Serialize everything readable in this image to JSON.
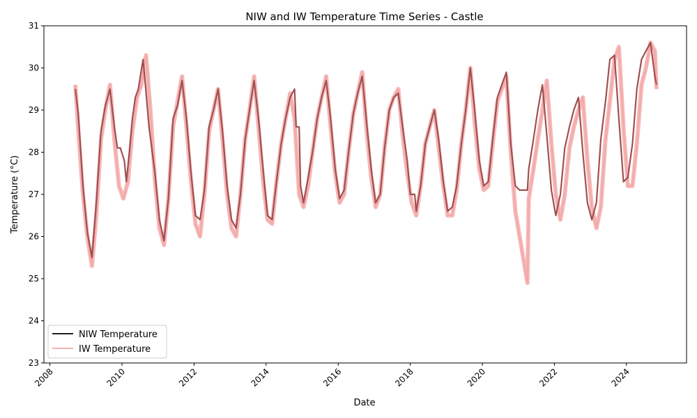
{
  "chart_data": {
    "type": "line",
    "title": "NIW and IW Temperature Time Series - Castle",
    "xlabel": "Date",
    "ylabel": "Temperature (°C)",
    "xlim": [
      "2007-11-01",
      "2025-09-01"
    ],
    "ylim": [
      23,
      31
    ],
    "x_ticks": [
      "2008",
      "2010",
      "2012",
      "2014",
      "2016",
      "2018",
      "2020",
      "2022",
      "2024"
    ],
    "y_ticks": [
      23,
      24,
      25,
      26,
      27,
      28,
      29,
      30,
      31
    ],
    "grid": false,
    "legend_position": "lower-left",
    "series": [
      {
        "name": "NIW Temperature",
        "color": "#000000",
        "x": [
          "2008-09-15",
          "2008-10-15",
          "2008-12-01",
          "2009-01-15",
          "2009-03-01",
          "2009-04-15",
          "2009-06-01",
          "2009-07-15",
          "2009-09-01",
          "2009-10-15",
          "2009-11-15",
          "2009-12-15",
          "2010-01-25",
          "2010-02-15",
          "2010-03-15",
          "2010-04-15",
          "2010-05-15",
          "2010-06-15",
          "2010-08-01",
          "2010-08-25",
          "2010-10-01",
          "2010-12-01",
          "2011-01-15",
          "2011-03-01",
          "2011-04-15",
          "2011-06-01",
          "2011-07-15",
          "2011-09-01",
          "2011-10-15",
          "2011-12-01",
          "2012-01-15",
          "2012-03-01",
          "2012-04-15",
          "2012-06-01",
          "2012-07-15",
          "2012-09-01",
          "2012-10-15",
          "2012-12-01",
          "2013-01-15",
          "2013-03-01",
          "2013-04-15",
          "2013-06-01",
          "2013-07-15",
          "2013-09-01",
          "2013-10-15",
          "2013-12-01",
          "2014-01-15",
          "2014-03-01",
          "2014-04-15",
          "2014-06-01",
          "2014-07-15",
          "2014-09-01",
          "2014-10-15",
          "2014-11-01",
          "2014-12-01",
          "2014-12-15",
          "2015-01-15",
          "2015-03-01",
          "2015-04-15",
          "2015-06-01",
          "2015-07-15",
          "2015-09-01",
          "2015-10-15",
          "2015-12-01",
          "2016-01-15",
          "2016-03-01",
          "2016-04-15",
          "2016-06-01",
          "2016-07-15",
          "2016-09-01",
          "2016-10-15",
          "2016-12-01",
          "2017-01-15",
          "2017-03-01",
          "2017-04-15",
          "2017-06-01",
          "2017-07-15",
          "2017-09-01",
          "2017-10-15",
          "2017-12-01",
          "2018-01-01",
          "2018-02-15",
          "2018-03-01",
          "2018-04-15",
          "2018-06-01",
          "2018-07-15",
          "2018-09-01",
          "2018-10-15",
          "2018-12-01",
          "2019-01-15",
          "2019-03-01",
          "2019-04-15",
          "2019-06-01",
          "2019-07-15",
          "2019-09-01",
          "2019-10-15",
          "2019-12-01",
          "2020-01-15",
          "2020-03-01",
          "2020-04-15",
          "2020-06-01",
          "2020-07-15",
          "2020-09-01",
          "2020-10-15",
          "2020-12-01",
          "2021-01-15",
          "2021-02-01",
          "2021-04-01",
          "2021-04-15",
          "2021-06-01",
          "2021-07-15",
          "2021-09-01",
          "2021-10-15",
          "2021-12-01",
          "2022-01-15",
          "2022-03-01",
          "2022-04-15",
          "2022-06-01",
          "2022-07-15",
          "2022-09-01",
          "2022-10-15",
          "2022-12-01",
          "2023-01-15",
          "2023-03-01",
          "2023-04-15",
          "2023-06-01",
          "2023-07-15",
          "2023-09-01",
          "2023-10-15",
          "2023-12-01",
          "2024-01-15",
          "2024-03-01",
          "2024-04-15",
          "2024-06-01",
          "2024-07-15",
          "2024-09-01",
          "2024-10-15",
          "2024-11-01"
        ],
        "y": [
          29.5,
          28.9,
          27.2,
          26.1,
          25.5,
          26.8,
          28.5,
          29.1,
          29.5,
          28.6,
          28.1,
          28.1,
          27.8,
          27.3,
          28.0,
          28.8,
          29.3,
          29.5,
          30.2,
          29.6,
          28.6,
          27.5,
          26.4,
          25.9,
          26.9,
          28.8,
          29.1,
          29.7,
          28.8,
          27.5,
          26.5,
          26.4,
          27.1,
          28.6,
          29.0,
          29.5,
          28.5,
          27.2,
          26.4,
          26.2,
          27.0,
          28.3,
          29.0,
          29.7,
          28.8,
          27.6,
          26.5,
          26.4,
          27.3,
          28.2,
          28.8,
          29.3,
          29.5,
          28.6,
          28.6,
          27.2,
          26.8,
          27.4,
          28.0,
          28.8,
          29.3,
          29.7,
          28.8,
          27.6,
          26.9,
          27.1,
          28.0,
          28.9,
          29.4,
          29.8,
          28.7,
          27.6,
          26.8,
          27.0,
          28.1,
          29.0,
          29.3,
          29.4,
          28.6,
          27.8,
          27.0,
          27.0,
          26.6,
          27.2,
          28.2,
          28.6,
          29.0,
          28.3,
          27.3,
          26.6,
          26.7,
          27.2,
          28.2,
          29.0,
          30.0,
          29.0,
          27.8,
          27.2,
          27.3,
          28.3,
          29.3,
          29.6,
          29.9,
          28.2,
          27.2,
          27.1,
          27.1,
          27.1,
          27.6,
          28.3,
          29.0,
          29.6,
          28.4,
          27.1,
          26.5,
          27.0,
          28.1,
          28.6,
          29.0,
          29.3,
          28.0,
          26.8,
          26.4,
          26.8,
          28.3,
          29.2,
          30.2,
          30.3,
          28.8,
          27.3,
          27.4,
          28.2,
          29.5,
          30.2,
          30.4,
          30.6,
          29.8,
          29.6
        ]
      },
      {
        "name": "IW Temperature",
        "color": "#f08080",
        "x": [
          "2008-09-15",
          "2008-10-15",
          "2008-12-01",
          "2009-01-15",
          "2009-03-01",
          "2009-04-15",
          "2009-06-01",
          "2009-07-15",
          "2009-09-01",
          "2009-10-15",
          "2009-12-01",
          "2010-01-15",
          "2010-03-01",
          "2010-04-15",
          "2010-06-01",
          "2010-07-15",
          "2010-09-01",
          "2010-10-15",
          "2010-12-01",
          "2011-01-15",
          "2011-03-01",
          "2011-04-15",
          "2011-06-01",
          "2011-07-15",
          "2011-09-01",
          "2011-10-15",
          "2011-12-01",
          "2012-01-15",
          "2012-03-01",
          "2012-04-15",
          "2012-06-01",
          "2012-07-15",
          "2012-09-01",
          "2012-10-15",
          "2012-12-01",
          "2013-01-15",
          "2013-03-01",
          "2013-04-15",
          "2013-06-01",
          "2013-07-15",
          "2013-09-01",
          "2013-10-15",
          "2013-12-01",
          "2014-01-15",
          "2014-03-01",
          "2014-04-15",
          "2014-06-01",
          "2014-07-15",
          "2014-09-01",
          "2014-10-15",
          "2014-12-01",
          "2015-01-15",
          "2015-03-01",
          "2015-04-15",
          "2015-06-01",
          "2015-07-15",
          "2015-09-01",
          "2015-10-15",
          "2015-12-01",
          "2016-01-15",
          "2016-03-01",
          "2016-04-15",
          "2016-06-01",
          "2016-07-15",
          "2016-09-01",
          "2016-10-15",
          "2016-12-01",
          "2017-01-15",
          "2017-03-01",
          "2017-04-15",
          "2017-06-01",
          "2017-07-15",
          "2017-09-01",
          "2017-10-15",
          "2017-12-01",
          "2018-01-15",
          "2018-03-01",
          "2018-04-15",
          "2018-06-01",
          "2018-07-15",
          "2018-09-01",
          "2018-10-15",
          "2018-12-01",
          "2019-01-15",
          "2019-03-01",
          "2019-04-15",
          "2019-06-01",
          "2019-07-15",
          "2019-09-01",
          "2019-10-15",
          "2019-12-01",
          "2020-01-15",
          "2020-03-01",
          "2020-04-15",
          "2020-06-01",
          "2020-07-15",
          "2020-09-01",
          "2020-10-15",
          "2020-12-01",
          "2021-04-01",
          "2021-04-15",
          "2021-06-01",
          "2021-07-15",
          "2021-09-01",
          "2021-10-15",
          "2021-12-01",
          "2022-01-15",
          "2022-03-01",
          "2022-04-15",
          "2022-06-01",
          "2022-07-15",
          "2022-09-01",
          "2022-10-15",
          "2022-12-01",
          "2023-01-15",
          "2023-03-01",
          "2023-04-15",
          "2023-06-01",
          "2023-07-15",
          "2023-09-01",
          "2023-10-15",
          "2023-12-01",
          "2024-01-15",
          "2024-03-01",
          "2024-04-15",
          "2024-06-01",
          "2024-07-15",
          "2024-09-01",
          "2024-10-15",
          "2024-11-01"
        ],
        "y": [
          29.6,
          28.5,
          27.0,
          26.0,
          25.3,
          26.5,
          28.3,
          29.0,
          29.6,
          28.3,
          27.2,
          26.9,
          27.3,
          28.5,
          29.3,
          29.6,
          30.3,
          29.0,
          27.3,
          26.2,
          25.8,
          26.9,
          28.6,
          29.2,
          29.8,
          28.6,
          27.3,
          26.3,
          26.0,
          27.0,
          28.5,
          29.0,
          29.5,
          28.3,
          27.0,
          26.2,
          26.0,
          27.0,
          28.3,
          29.0,
          29.8,
          28.6,
          27.3,
          26.4,
          26.3,
          27.3,
          28.2,
          28.8,
          29.4,
          28.8,
          27.0,
          26.7,
          27.2,
          28.0,
          28.8,
          29.3,
          29.8,
          28.6,
          27.5,
          26.8,
          27.0,
          28.0,
          28.9,
          29.4,
          29.9,
          28.5,
          27.4,
          26.7,
          27.0,
          28.1,
          29.0,
          29.3,
          29.5,
          28.4,
          27.5,
          26.8,
          26.5,
          27.2,
          28.2,
          28.6,
          29.0,
          28.1,
          27.2,
          26.5,
          26.5,
          27.1,
          28.2,
          29.0,
          30.0,
          28.7,
          27.6,
          27.1,
          27.2,
          28.2,
          29.2,
          29.5,
          29.8,
          28.0,
          26.6,
          24.9,
          26.9,
          27.6,
          28.3,
          29.0,
          29.7,
          28.2,
          27.0,
          26.4,
          27.0,
          28.1,
          28.6,
          29.0,
          29.3,
          27.8,
          26.7,
          26.2,
          26.7,
          28.3,
          29.2,
          30.2,
          30.5,
          28.6,
          27.2,
          27.2,
          28.2,
          29.6,
          30.0,
          30.6,
          30.4,
          29.5
        ]
      }
    ]
  }
}
